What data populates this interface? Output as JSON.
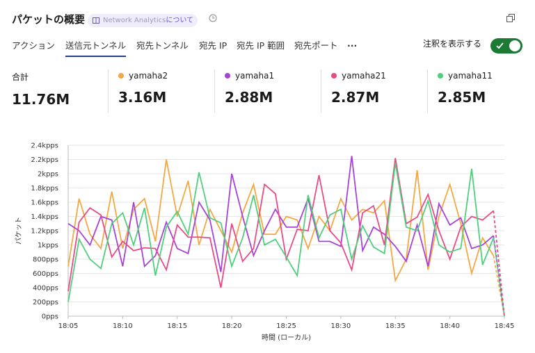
{
  "header": {
    "title": "パケットの概要",
    "badge_name": "Network Analytics",
    "badge_suffix": "について"
  },
  "tabs": {
    "items": [
      "アクション",
      "送信元トンネル",
      "宛先トンネル",
      "宛先 IP",
      "宛先 IP 範囲",
      "宛先ポート",
      "..."
    ],
    "active": 1
  },
  "toggle": {
    "label": "注釈を表示する",
    "on": true
  },
  "summary": {
    "total_label": "合計",
    "total": "11.76M",
    "values": [
      "3.16M",
      "2.88M",
      "2.87M",
      "2.85M"
    ]
  },
  "chart_data": {
    "type": "line",
    "ylabel": "パケット",
    "xlabel": "時間 (ローカル)",
    "x": [
      "18:05",
      "18:06",
      "18:07",
      "18:08",
      "18:09",
      "18:10",
      "18:11",
      "18:12",
      "18:13",
      "18:14",
      "18:15",
      "18:16",
      "18:17",
      "18:18",
      "18:19",
      "18:20",
      "18:21",
      "18:22",
      "18:23",
      "18:24",
      "18:25",
      "18:26",
      "18:27",
      "18:28",
      "18:29",
      "18:30",
      "18:31",
      "18:32",
      "18:33",
      "18:34",
      "18:35",
      "18:36",
      "18:37",
      "18:38",
      "18:39",
      "18:40",
      "18:41",
      "18:42",
      "18:43",
      "18:44",
      "18:45"
    ],
    "xticks": [
      "18:05",
      "18:10",
      "18:15",
      "18:20",
      "18:25",
      "18:30",
      "18:35",
      "18:40",
      "18:45"
    ],
    "ylim": [
      0,
      2400
    ],
    "yticks": [
      {
        "value": 0,
        "label": "0pps"
      },
      {
        "value": 200,
        "label": "200pps"
      },
      {
        "value": 400,
        "label": "400pps"
      },
      {
        "value": 600,
        "label": "600pps"
      },
      {
        "value": 800,
        "label": "800pps"
      },
      {
        "value": 1000,
        "label": "1kpps"
      },
      {
        "value": 1200,
        "label": "1.2kpps"
      },
      {
        "value": 1400,
        "label": "1.4kpps"
      },
      {
        "value": 1600,
        "label": "1.6kpps"
      },
      {
        "value": 1800,
        "label": "1.8kpps"
      },
      {
        "value": 2000,
        "label": "2kpps"
      },
      {
        "value": 2200,
        "label": "2.2kpps"
      },
      {
        "value": 2400,
        "label": "2.4kpps"
      }
    ],
    "grid": true,
    "dashed_last_segment": true,
    "series": [
      {
        "name": "yamaha2",
        "color": "#f5a742",
        "values": [
          700,
          1650,
          1150,
          950,
          1750,
          950,
          1500,
          1650,
          1050,
          2200,
          1400,
          1900,
          1000,
          1500,
          1200,
          900,
          1450,
          1850,
          1150,
          1150,
          1400,
          1350,
          950,
          1400,
          1200,
          1650,
          1350,
          1500,
          1450,
          1620,
          500,
          800,
          2050,
          650,
          1400,
          1850,
          1300,
          600,
          1100,
          850,
          0
        ]
      },
      {
        "name": "yamaha1",
        "color": "#a742d8",
        "values": [
          1300,
          1200,
          1000,
          1400,
          1350,
          700,
          1600,
          700,
          850,
          1320,
          950,
          880,
          1600,
          1350,
          620,
          2000,
          1400,
          850,
          1200,
          1500,
          1250,
          1250,
          1650,
          1050,
          1050,
          980,
          2250,
          920,
          1250,
          1150,
          980,
          770,
          1280,
          700,
          1580,
          1280,
          1380,
          950,
          1000,
          1130,
          0
        ]
      },
      {
        "name": "yamaha21",
        "color": "#e84a86",
        "values": [
          350,
          1320,
          1520,
          1420,
          830,
          1050,
          920,
          960,
          950,
          650,
          1280,
          1110,
          1110,
          1100,
          400,
          1300,
          770,
          950,
          1850,
          1720,
          800,
          1220,
          1200,
          1980,
          1200,
          1030,
          650,
          1450,
          1550,
          1000,
          2220,
          1300,
          1390,
          1710,
          1200,
          800,
          1250,
          1400,
          1350,
          1480,
          0
        ]
      },
      {
        "name": "yamaha11",
        "color": "#4fcf7c",
        "values": [
          200,
          1080,
          800,
          670,
          1300,
          1450,
          1000,
          1520,
          570,
          1250,
          1470,
          1150,
          2020,
          1380,
          1310,
          700,
          1100,
          1700,
          1000,
          1080,
          830,
          570,
          1700,
          1100,
          1420,
          1500,
          800,
          1270,
          970,
          880,
          2150,
          1250,
          1200,
          1620,
          1000,
          900,
          950,
          2070,
          720,
          1100,
          0
        ]
      }
    ]
  }
}
